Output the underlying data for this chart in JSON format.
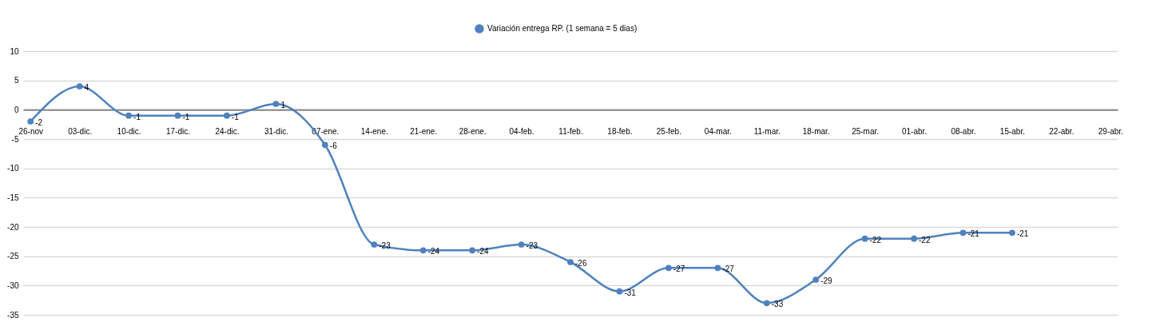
{
  "chart_data": {
    "type": "line",
    "categories": [
      "26-nov",
      "03-dic.",
      "10-dic.",
      "17-dic.",
      "24-dic.",
      "31-dic.",
      "07-ene.",
      "14-ene.",
      "21-ene.",
      "28-ene.",
      "04-feb.",
      "11-feb.",
      "18-feb.",
      "25-feb.",
      "04-mar.",
      "11-mar.",
      "18-mar.",
      "25-mar.",
      "01-abr.",
      "08-abr.",
      "15-abr.",
      "22-abr.",
      "29-abr."
    ],
    "series": [
      {
        "name": "Variación entrega RP. (1 semana = 5 dias)",
        "color": "#4f81bd",
        "values": [
          -2,
          4,
          -1,
          -1,
          -1,
          1,
          -6,
          -23,
          -24,
          -24,
          -23,
          -26,
          -31,
          -27,
          -27,
          -33,
          -29,
          -22,
          -22,
          -21,
          -21,
          null,
          null
        ]
      }
    ],
    "ylim": [
      -35,
      10
    ],
    "yticks": [
      -35,
      -30,
      -25,
      -20,
      -15,
      -10,
      -5,
      0,
      5,
      10
    ],
    "grid": "y",
    "legend": "top",
    "marker": "circle",
    "line_style": "solid",
    "data_labels": true
  }
}
